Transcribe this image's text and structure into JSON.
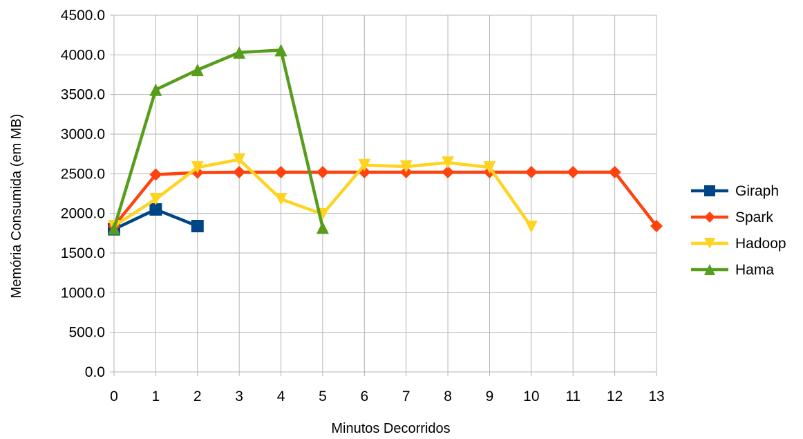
{
  "chart_data": {
    "type": "line",
    "title": "",
    "xlabel": "Minutos Decorridos",
    "ylabel": "Memória Consumida (em MB)",
    "x": [
      0,
      1,
      2,
      3,
      4,
      5,
      6,
      7,
      8,
      9,
      10,
      11,
      12,
      13
    ],
    "x_tick_labels": [
      "0",
      "1",
      "2",
      "3",
      "4",
      "5",
      "6",
      "7",
      "8",
      "9",
      "10",
      "11",
      "12",
      "13"
    ],
    "xlim": [
      0,
      13
    ],
    "ylim": [
      0,
      4500
    ],
    "y_ticks": [
      0,
      500,
      1000,
      1500,
      2000,
      2500,
      3000,
      3500,
      4000,
      4500
    ],
    "y_tick_labels": [
      "0.0",
      "500.0",
      "1000.0",
      "1500.0",
      "2000.0",
      "2500.0",
      "3000.0",
      "3500.0",
      "4000.0",
      "4500.0"
    ],
    "grid": true,
    "legend_position": "right",
    "series": [
      {
        "name": "Giraph",
        "color": "#004586",
        "marker": "square",
        "x": [
          0,
          1,
          2
        ],
        "values": [
          1800,
          2050,
          1840
        ]
      },
      {
        "name": "Spark",
        "color": "#ff420e",
        "marker": "diamond",
        "x": [
          0,
          1,
          2,
          3,
          4,
          5,
          6,
          7,
          8,
          9,
          10,
          11,
          12,
          13
        ],
        "values": [
          1840,
          2490,
          2515,
          2520,
          2520,
          2520,
          2520,
          2520,
          2520,
          2520,
          2520,
          2520,
          2520,
          1840
        ]
      },
      {
        "name": "Hadoop",
        "color": "#ffd320",
        "marker": "triangle-down",
        "x": [
          0,
          1,
          2,
          3,
          4,
          5,
          6,
          7,
          8,
          9,
          10
        ],
        "values": [
          1840,
          2180,
          2580,
          2680,
          2180,
          1990,
          2610,
          2590,
          2640,
          2580,
          1830
        ]
      },
      {
        "name": "Hama",
        "color": "#579d1c",
        "marker": "triangle-up",
        "x": [
          0,
          1,
          2,
          3,
          4,
          5
        ],
        "values": [
          1810,
          3560,
          3810,
          4030,
          4060,
          1820
        ]
      }
    ]
  }
}
